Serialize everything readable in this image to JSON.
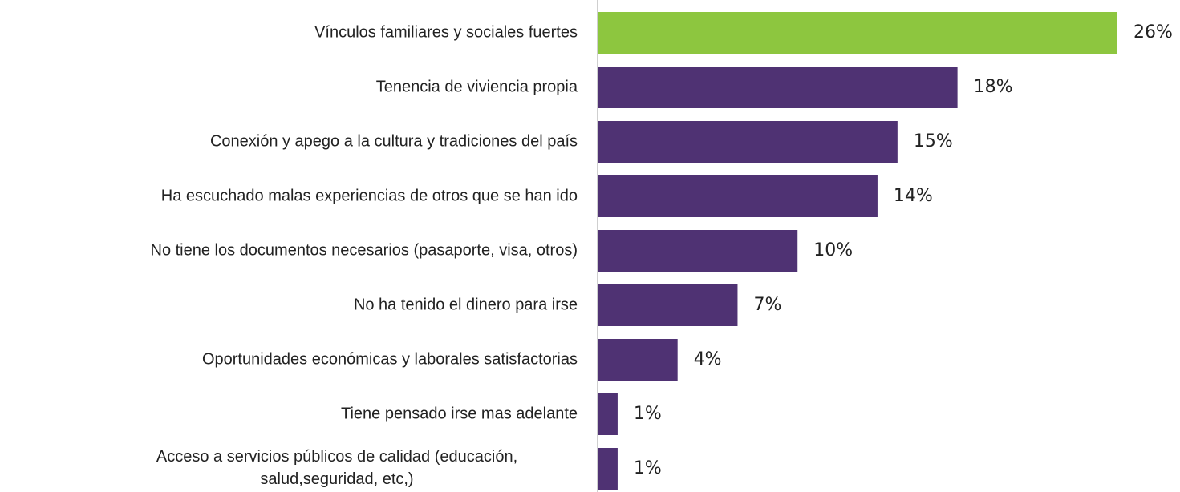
{
  "chart_data": {
    "type": "barh",
    "categories": [
      "Vínculos familiares y sociales fuertes",
      "Tenencia de viviencia propia",
      "Conexión y apego a la cultura y tradiciones del país",
      "Ha escuchado malas experiencias de otros que se han ido",
      "No tiene los documentos necesarios (pasaporte, visa, otros)",
      "No ha tenido el dinero para irse",
      "Oportunidades económicas y laborales satisfactorias",
      "Tiene pensado irse mas adelante",
      "Acceso a servicios públicos de calidad (educación,\nsalud,seguridad, etc,)"
    ],
    "values": [
      26,
      18,
      15,
      14,
      10,
      7,
      4,
      1,
      1
    ],
    "value_labels": [
      "26%",
      "18%",
      "15%",
      "14%",
      "10%",
      "7%",
      "4%",
      "1%",
      "1%"
    ],
    "colors": [
      "#8dc63f",
      "#4f3273",
      "#4f3273",
      "#4f3273",
      "#4f3273",
      "#4f3273",
      "#4f3273",
      "#4f3273",
      "#4f3273"
    ],
    "xlim": [
      0,
      26
    ]
  }
}
